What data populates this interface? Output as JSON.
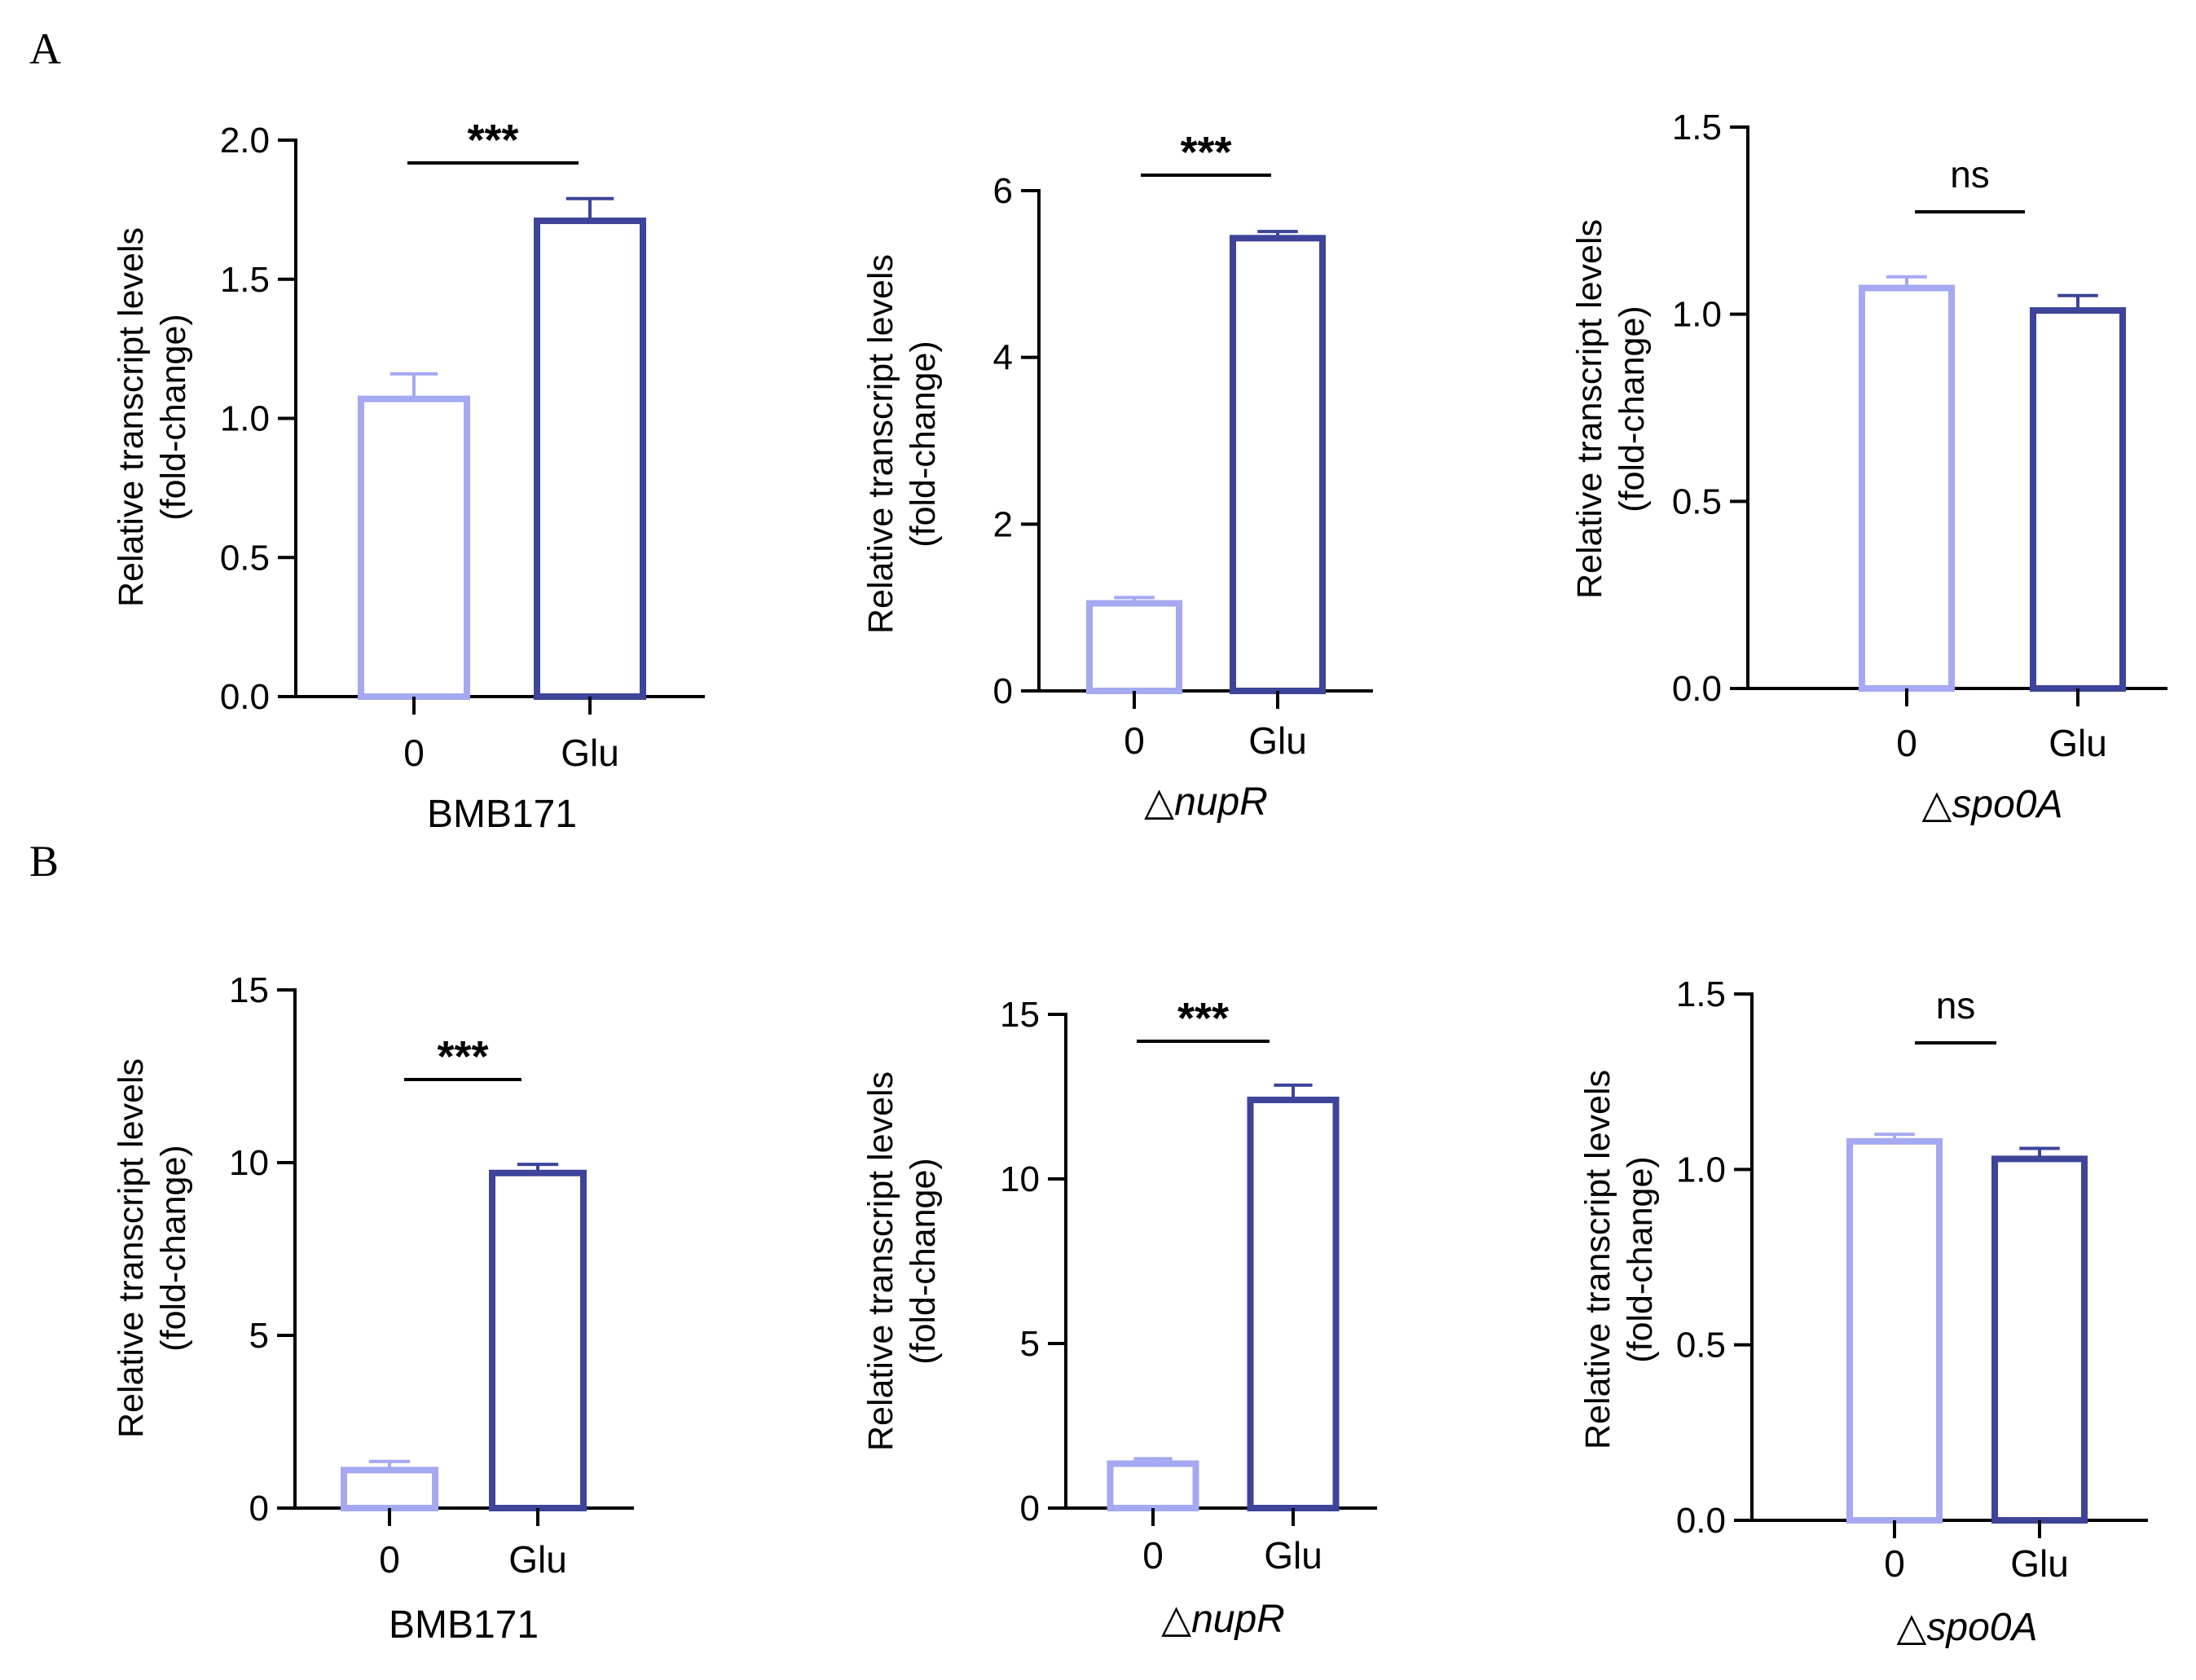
{
  "panel_letters": [
    "A",
    "B"
  ],
  "colors": {
    "bar_0": "#a4a9f2",
    "bar_glu": "#3d449a",
    "axis": "#000000"
  },
  "chart_data": [
    {
      "type": "bar",
      "panel": "A",
      "group": "BMB171",
      "group_italic": false,
      "group_prefix": "",
      "categories": [
        "0",
        "Glu"
      ],
      "values": [
        1.07,
        1.71
      ],
      "errors": [
        0.09,
        0.08
      ],
      "ylabel": [
        "Relative transcript levels",
        "(fold-change)"
      ],
      "ylim": [
        0,
        2.0
      ],
      "yticks": [
        0.0,
        0.5,
        1.0,
        1.5,
        2.0
      ],
      "ytick_labels": [
        "0.0",
        "0.5",
        "1.0",
        "1.5",
        "2.0"
      ],
      "significance": "***"
    },
    {
      "type": "bar",
      "panel": "A",
      "group": "nupR",
      "group_italic": true,
      "group_prefix": "△",
      "categories": [
        "0",
        "Glu"
      ],
      "values": [
        1.05,
        5.43
      ],
      "errors": [
        0.07,
        0.08
      ],
      "ylabel": [
        "Relative transcript levels",
        "(fold-change)"
      ],
      "ylim": [
        0,
        6
      ],
      "yticks": [
        0,
        2,
        4,
        6
      ],
      "ytick_labels": [
        "0",
        "2",
        "4",
        "6"
      ],
      "significance": "***"
    },
    {
      "type": "bar",
      "panel": "A",
      "group": "spo0A",
      "group_italic": true,
      "group_prefix": "△",
      "categories": [
        "0",
        "Glu"
      ],
      "values": [
        1.07,
        1.01
      ],
      "errors": [
        0.03,
        0.04
      ],
      "ylabel": [
        "Relative transcript levels",
        "(fold-change)"
      ],
      "ylim": [
        0,
        1.5
      ],
      "yticks": [
        0.0,
        0.5,
        1.0,
        1.5
      ],
      "ytick_labels": [
        "0.0",
        "0.5",
        "1.0",
        "1.5"
      ],
      "significance": "ns"
    },
    {
      "type": "bar",
      "panel": "B",
      "group": "BMB171",
      "group_italic": false,
      "group_prefix": "",
      "categories": [
        "0",
        "Glu"
      ],
      "values": [
        1.1,
        9.7
      ],
      "errors": [
        0.25,
        0.25
      ],
      "ylabel": [
        "Relative transcript levels",
        "(fold-change)"
      ],
      "ylim": [
        0,
        15
      ],
      "yticks": [
        0,
        5,
        10,
        15
      ],
      "ytick_labels": [
        "0",
        "5",
        "10",
        "15"
      ],
      "significance": "***"
    },
    {
      "type": "bar",
      "panel": "B",
      "group": "nupR",
      "group_italic": true,
      "group_prefix": "△",
      "categories": [
        "0",
        "Glu"
      ],
      "values": [
        1.35,
        12.4
      ],
      "errors": [
        0.15,
        0.45
      ],
      "ylabel": [
        "Relative transcript levels",
        "(fold-change)"
      ],
      "ylim": [
        0,
        15
      ],
      "yticks": [
        0,
        5,
        10,
        15
      ],
      "ytick_labels": [
        "0",
        "5",
        "10",
        "15"
      ],
      "significance": "***"
    },
    {
      "type": "bar",
      "panel": "B",
      "group": "spo0A",
      "group_italic": true,
      "group_prefix": "△",
      "categories": [
        "0",
        "Glu"
      ],
      "values": [
        1.08,
        1.03
      ],
      "errors": [
        0.02,
        0.03
      ],
      "ylabel": [
        "Relative transcript levels",
        "(fold-change)"
      ],
      "ylim": [
        0,
        1.5
      ],
      "yticks": [
        0.0,
        0.5,
        1.0,
        1.5
      ],
      "ytick_labels": [
        "0.0",
        "0.5",
        "1.0",
        "1.5"
      ],
      "significance": "ns"
    }
  ]
}
